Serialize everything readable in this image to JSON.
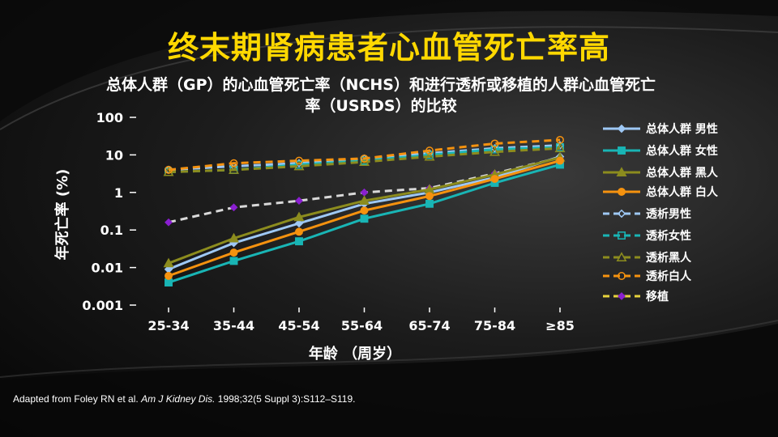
{
  "title": "终末期肾病患者心血管死亡率高",
  "subtitle_line1": "总体人群（GP）的心血管死亡率（NCHS）和进行透析或移植的人群心血管死亡",
  "subtitle_line2": "率（USRDS）的比较",
  "citation": {
    "prefix": "Adapted from Foley RN et al. ",
    "journal": "Am J Kidney Dis.",
    "suffix": " 1998;32(5 Suppl 3):S112–S119."
  },
  "chart_data": {
    "type": "line",
    "xlabel": "年龄 （周岁）",
    "ylabel": "年死亡率 (%)",
    "categories": [
      "25-34",
      "35-44",
      "45-54",
      "55-64",
      "65-74",
      "75-84",
      "≥85"
    ],
    "y_scale": "log",
    "ylim": [
      0.001,
      100
    ],
    "y_ticks": [
      "100",
      "10",
      "1",
      "0.1",
      "0.01",
      "0.001"
    ],
    "legend_position": "right",
    "series": [
      {
        "name": "总体人群 男性",
        "color": "#9ec8f5",
        "dash": false,
        "marker": "diamond",
        "values": [
          0.009,
          0.045,
          0.15,
          0.5,
          1.0,
          2.5,
          9
        ]
      },
      {
        "name": "总体人群 女性",
        "color": "#19b5b5",
        "dash": false,
        "marker": "square",
        "values": [
          0.004,
          0.015,
          0.05,
          0.2,
          0.5,
          1.8,
          5.5
        ]
      },
      {
        "name": "总体人群 黑人",
        "color": "#8c8c1e",
        "dash": false,
        "marker": "triangle",
        "values": [
          0.013,
          0.06,
          0.22,
          0.6,
          1.2,
          3,
          8.5
        ]
      },
      {
        "name": "总体人群 白人",
        "color": "#f5920f",
        "dash": false,
        "marker": "circle",
        "values": [
          0.006,
          0.025,
          0.09,
          0.33,
          0.8,
          2.3,
          7
        ]
      },
      {
        "name": "透析男性",
        "color": "#9ec8f5",
        "dash": true,
        "marker": "diamond-open",
        "values": [
          4,
          5,
          6,
          8,
          11,
          15,
          18
        ]
      },
      {
        "name": "透析女性",
        "color": "#19b5b5",
        "dash": true,
        "marker": "square-open",
        "values": [
          3.5,
          4,
          5.5,
          7,
          10,
          14,
          16
        ]
      },
      {
        "name": "透析黑人",
        "color": "#8c8c1e",
        "dash": true,
        "marker": "triangle-open",
        "values": [
          3.5,
          4,
          5,
          6.5,
          9,
          12,
          15
        ]
      },
      {
        "name": "透析白人",
        "color": "#f5920f",
        "dash": true,
        "marker": "circle-open",
        "values": [
          4,
          6,
          7,
          8,
          13,
          20,
          25
        ]
      },
      {
        "name": "移植",
        "color": "#e6d23c",
        "dash": true,
        "marker": "diamond-purple",
        "values": [
          0.16,
          0.4,
          0.6,
          1.0,
          1.3,
          3.2,
          8.5
        ]
      }
    ]
  }
}
